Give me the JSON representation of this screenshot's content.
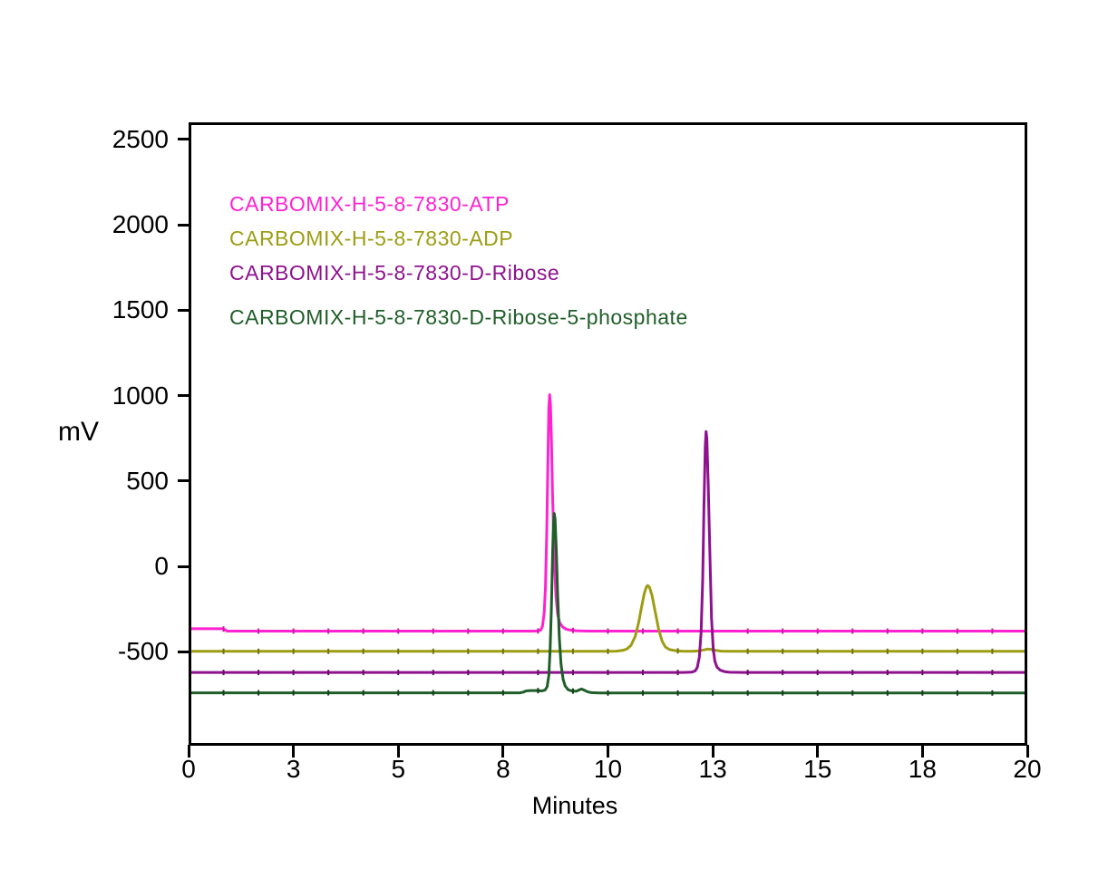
{
  "figure": {
    "kind": "HPLC chromatogram overlay",
    "background": "#ffffff",
    "axis_color": "#000000"
  },
  "chart_data": {
    "type": "line",
    "title": "",
    "xlabel": "Minutes",
    "ylabel": "mV",
    "xlim": [
      0,
      20
    ],
    "ylim": [
      -1050,
      2600
    ],
    "grid": false,
    "legend_position": "inside-top-left",
    "x_ticks": [
      {
        "value": 0,
        "label": "0"
      },
      {
        "value": 2.5,
        "label": "3"
      },
      {
        "value": 5,
        "label": "5"
      },
      {
        "value": 7.5,
        "label": "8"
      },
      {
        "value": 10,
        "label": "10"
      },
      {
        "value": 12.5,
        "label": "13"
      },
      {
        "value": 15,
        "label": "15"
      },
      {
        "value": 17.5,
        "label": "18"
      },
      {
        "value": 20,
        "label": "20"
      }
    ],
    "y_ticks": [
      {
        "value": 2500,
        "label": "2500"
      },
      {
        "value": 2000,
        "label": "2000"
      },
      {
        "value": 1500,
        "label": "1500"
      },
      {
        "value": 1000,
        "label": "1000"
      },
      {
        "value": 500,
        "label": "500"
      },
      {
        "value": 0,
        "label": "0"
      },
      {
        "value": -500,
        "label": "-500"
      }
    ],
    "time_mark_interval_min": 0.8333,
    "series": [
      {
        "id": "atp",
        "name": "CARBOMIX-H-5-8-7830-ATP",
        "color": "#ff22d0",
        "marker_color": "#cc1ba6",
        "baseline_mV": -379,
        "peak": {
          "retention_min": 8.61,
          "apex_mV": 1005,
          "height_above_baseline_mV": 1384
        },
        "points": [
          [
            0,
            -365
          ],
          [
            0.82,
            -365
          ],
          [
            0.86,
            -370
          ],
          [
            0.92,
            -379
          ],
          [
            1.5,
            -379
          ],
          [
            3,
            -379
          ],
          [
            5,
            -379
          ],
          [
            7,
            -379
          ],
          [
            8.2,
            -379
          ],
          [
            8.34,
            -378
          ],
          [
            8.4,
            -372
          ],
          [
            8.44,
            -350
          ],
          [
            8.48,
            -270
          ],
          [
            8.51,
            -120
          ],
          [
            8.54,
            200
          ],
          [
            8.57,
            650
          ],
          [
            8.59,
            930
          ],
          [
            8.61,
            1005
          ],
          [
            8.63,
            950
          ],
          [
            8.65,
            760
          ],
          [
            8.68,
            420
          ],
          [
            8.72,
            60
          ],
          [
            8.76,
            -170
          ],
          [
            8.8,
            -280
          ],
          [
            8.85,
            -330
          ],
          [
            8.92,
            -355
          ],
          [
            9.0,
            -367
          ],
          [
            9.1,
            -373
          ],
          [
            9.25,
            -377
          ],
          [
            9.5,
            -379
          ],
          [
            10,
            -379
          ],
          [
            11,
            -379
          ],
          [
            12,
            -379
          ],
          [
            13,
            -379
          ],
          [
            14,
            -379
          ],
          [
            15,
            -379
          ],
          [
            16,
            -379
          ],
          [
            17,
            -379
          ],
          [
            18,
            -379
          ],
          [
            19,
            -379
          ],
          [
            20,
            -379
          ]
        ]
      },
      {
        "id": "adp",
        "name": "CARBOMIX-H-5-8-7830-ADP",
        "color": "#9d9d14",
        "marker_color": "#70700e",
        "baseline_mV": -497,
        "peak": {
          "retention_min": 10.95,
          "apex_mV": -112,
          "height_above_baseline_mV": 385
        },
        "points": [
          [
            0,
            -497
          ],
          [
            1,
            -497
          ],
          [
            2,
            -497
          ],
          [
            3,
            -497
          ],
          [
            4,
            -497
          ],
          [
            5,
            -497
          ],
          [
            6,
            -497
          ],
          [
            7,
            -497
          ],
          [
            8,
            -497
          ],
          [
            9,
            -497
          ],
          [
            10,
            -497
          ],
          [
            10.2,
            -496
          ],
          [
            10.35,
            -492
          ],
          [
            10.45,
            -484
          ],
          [
            10.55,
            -462
          ],
          [
            10.65,
            -410
          ],
          [
            10.73,
            -330
          ],
          [
            10.8,
            -240
          ],
          [
            10.87,
            -155
          ],
          [
            10.92,
            -118
          ],
          [
            10.95,
            -112
          ],
          [
            10.99,
            -122
          ],
          [
            11.05,
            -170
          ],
          [
            11.13,
            -270
          ],
          [
            11.21,
            -370
          ],
          [
            11.29,
            -437
          ],
          [
            11.37,
            -472
          ],
          [
            11.47,
            -487
          ],
          [
            11.6,
            -493
          ],
          [
            11.75,
            -496
          ],
          [
            12.0,
            -497
          ],
          [
            12.15,
            -495
          ],
          [
            12.28,
            -489
          ],
          [
            12.38,
            -484
          ],
          [
            12.48,
            -486
          ],
          [
            12.58,
            -492
          ],
          [
            12.7,
            -496
          ],
          [
            12.9,
            -497
          ],
          [
            13.5,
            -497
          ],
          [
            14,
            -497
          ],
          [
            15,
            -497
          ],
          [
            16,
            -497
          ],
          [
            17,
            -497
          ],
          [
            18,
            -497
          ],
          [
            19,
            -497
          ],
          [
            20,
            -497
          ]
        ]
      },
      {
        "id": "d-ribose",
        "name": "CARBOMIX-H-5-8-7830-D-Ribose",
        "color": "#8e128e",
        "marker_color": "#660d66",
        "baseline_mV": -621,
        "peak": {
          "retention_min": 12.34,
          "apex_mV": 790,
          "height_above_baseline_mV": 1411
        },
        "points": [
          [
            0,
            -621
          ],
          [
            1,
            -621
          ],
          [
            2,
            -621
          ],
          [
            3,
            -621
          ],
          [
            4,
            -621
          ],
          [
            5,
            -621
          ],
          [
            6,
            -621
          ],
          [
            7,
            -621
          ],
          [
            8,
            -621
          ],
          [
            9,
            -621
          ],
          [
            10,
            -621
          ],
          [
            11,
            -621
          ],
          [
            11.8,
            -621
          ],
          [
            12.0,
            -619
          ],
          [
            12.08,
            -612
          ],
          [
            12.13,
            -592
          ],
          [
            12.18,
            -530
          ],
          [
            12.22,
            -390
          ],
          [
            12.26,
            -80
          ],
          [
            12.29,
            350
          ],
          [
            12.32,
            700
          ],
          [
            12.34,
            790
          ],
          [
            12.36,
            750
          ],
          [
            12.39,
            500
          ],
          [
            12.43,
            80
          ],
          [
            12.47,
            -300
          ],
          [
            12.51,
            -480
          ],
          [
            12.55,
            -555
          ],
          [
            12.6,
            -590
          ],
          [
            12.68,
            -608
          ],
          [
            12.78,
            -616
          ],
          [
            12.9,
            -620
          ],
          [
            13.2,
            -621
          ],
          [
            14,
            -621
          ],
          [
            15,
            -621
          ],
          [
            16,
            -621
          ],
          [
            17,
            -621
          ],
          [
            18,
            -621
          ],
          [
            19,
            -621
          ],
          [
            20,
            -621
          ]
        ]
      },
      {
        "id": "d-ribose-5-phosphate",
        "name": "CARBOMIX-H-5-8-7830-D-Ribose-5-phosphate",
        "color": "#1f5e29",
        "marker_color": "#153f1c",
        "baseline_mV": -740,
        "peak": {
          "retention_min": 8.72,
          "apex_mV": 310,
          "height_above_baseline_mV": 1050
        },
        "points": [
          [
            0,
            -740
          ],
          [
            1,
            -740
          ],
          [
            2,
            -740
          ],
          [
            3,
            -740
          ],
          [
            4,
            -740
          ],
          [
            5,
            -740
          ],
          [
            6,
            -740
          ],
          [
            7,
            -740
          ],
          [
            7.9,
            -740
          ],
          [
            7.98,
            -736
          ],
          [
            8.05,
            -729
          ],
          [
            8.15,
            -727
          ],
          [
            8.3,
            -727
          ],
          [
            8.42,
            -729
          ],
          [
            8.5,
            -724
          ],
          [
            8.55,
            -705
          ],
          [
            8.59,
            -640
          ],
          [
            8.62,
            -490
          ],
          [
            8.65,
            -250
          ],
          [
            8.68,
            60
          ],
          [
            8.7,
            250
          ],
          [
            8.72,
            310
          ],
          [
            8.74,
            275
          ],
          [
            8.77,
            90
          ],
          [
            8.8,
            -160
          ],
          [
            8.84,
            -420
          ],
          [
            8.88,
            -570
          ],
          [
            8.93,
            -660
          ],
          [
            8.98,
            -700
          ],
          [
            9.05,
            -722
          ],
          [
            9.15,
            -730
          ],
          [
            9.25,
            -730
          ],
          [
            9.32,
            -722
          ],
          [
            9.37,
            -718
          ],
          [
            9.42,
            -723
          ],
          [
            9.5,
            -733
          ],
          [
            9.6,
            -739
          ],
          [
            9.8,
            -741
          ],
          [
            10,
            -741
          ],
          [
            11,
            -741
          ],
          [
            12,
            -741
          ],
          [
            13,
            -741
          ],
          [
            14,
            -741
          ],
          [
            15,
            -741
          ],
          [
            16,
            -741
          ],
          [
            17,
            -741
          ],
          [
            18,
            -741
          ],
          [
            19,
            -741
          ],
          [
            20,
            -741
          ]
        ]
      }
    ]
  }
}
